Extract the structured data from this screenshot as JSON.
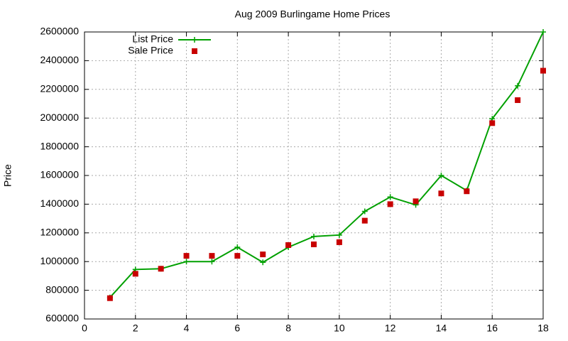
{
  "chart_data": {
    "type": "line",
    "title": "Aug 2009 Burlingame Home Prices",
    "y_label": "Price",
    "x": [
      1,
      2,
      3,
      4,
      5,
      6,
      7,
      8,
      9,
      10,
      11,
      12,
      13,
      14,
      15,
      16,
      17,
      18
    ],
    "series": [
      {
        "name": "List Price",
        "color": "#00a000",
        "style": "linespoints",
        "values": [
          750000,
          945000,
          950000,
          1000000,
          1000000,
          1100000,
          995000,
          1100000,
          1175000,
          1185000,
          1350000,
          1450000,
          1395000,
          1600000,
          1495000,
          1995000,
          2225000,
          2600000
        ]
      },
      {
        "name": "Sale Price",
        "color": "#c80000",
        "style": "points",
        "values": [
          745000,
          915000,
          950000,
          1040000,
          1040000,
          1040000,
          1050000,
          1115000,
          1120000,
          1135000,
          1285000,
          1400000,
          1420000,
          1475000,
          1490000,
          1965000,
          2125000,
          2330000
        ]
      }
    ],
    "xlim": [
      0,
      18
    ],
    "xticks": [
      0,
      2,
      4,
      6,
      8,
      10,
      12,
      14,
      16,
      18
    ],
    "ylim": [
      600000,
      2600000
    ],
    "yticks": [
      600000,
      800000,
      1000000,
      1200000,
      1400000,
      1600000,
      1800000,
      2000000,
      2200000,
      2400000,
      2600000
    ],
    "grid": true,
    "legend": "top-left"
  }
}
